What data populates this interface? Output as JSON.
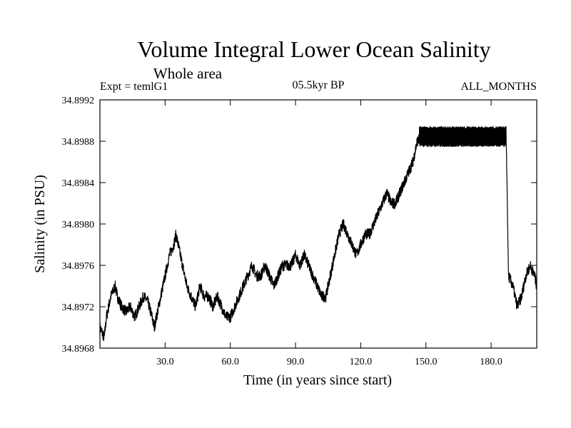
{
  "chart_data": {
    "type": "line",
    "title": "Volume Integral Lower Ocean Salinity",
    "subtitle": "Whole area",
    "experiment_label": "Expt = temlG1",
    "period_label": "05.5kyr BP",
    "season_label": "ALL_MONTHS",
    "xlabel": "Time (in years since start)",
    "ylabel": "Salinity (in PSU)",
    "xlim": [
      0,
      201
    ],
    "ylim": [
      34.8968,
      34.8992
    ],
    "x_ticks": [
      30,
      60,
      90,
      120,
      150,
      180
    ],
    "x_tick_labels": [
      "30.0",
      "60.0",
      "90.0",
      "120.0",
      "150.0",
      "180.0"
    ],
    "y_ticks": [
      34.8968,
      34.8972,
      34.8976,
      34.898,
      34.8984,
      34.8988,
      34.8992
    ],
    "y_tick_labels": [
      "34.8968",
      "34.8972",
      "34.8976",
      "34.8980",
      "34.8984",
      "34.8988",
      "34.8992"
    ],
    "grid": false,
    "series": [
      {
        "name": "Salinity",
        "color": "#000000",
        "points": [
          [
            0,
            34.897
          ],
          [
            1,
            34.89695
          ],
          [
            2,
            34.8969
          ],
          [
            3,
            34.8971
          ],
          [
            4,
            34.8972
          ],
          [
            5,
            34.8973
          ],
          [
            6,
            34.89735
          ],
          [
            7,
            34.8974
          ],
          [
            8,
            34.8973
          ],
          [
            10,
            34.8972
          ],
          [
            12,
            34.89715
          ],
          [
            14,
            34.8972
          ],
          [
            16,
            34.8971
          ],
          [
            18,
            34.8972
          ],
          [
            20,
            34.8973
          ],
          [
            22,
            34.89725
          ],
          [
            24,
            34.8971
          ],
          [
            25,
            34.897
          ],
          [
            26,
            34.8971
          ],
          [
            28,
            34.8973
          ],
          [
            30,
            34.8975
          ],
          [
            32,
            34.8977
          ],
          [
            34,
            34.8978
          ],
          [
            35,
            34.8979
          ],
          [
            36,
            34.8978
          ],
          [
            38,
            34.8976
          ],
          [
            40,
            34.8974
          ],
          [
            42,
            34.8973
          ],
          [
            44,
            34.8972
          ],
          [
            46,
            34.8974
          ],
          [
            48,
            34.8973
          ],
          [
            50,
            34.8973
          ],
          [
            52,
            34.8972
          ],
          [
            54,
            34.8973
          ],
          [
            56,
            34.8972
          ],
          [
            58,
            34.8971
          ],
          [
            60,
            34.8971
          ],
          [
            62,
            34.8972
          ],
          [
            64,
            34.8973
          ],
          [
            66,
            34.8974
          ],
          [
            68,
            34.8975
          ],
          [
            70,
            34.8976
          ],
          [
            72,
            34.8975
          ],
          [
            74,
            34.8975
          ],
          [
            76,
            34.8976
          ],
          [
            78,
            34.8975
          ],
          [
            80,
            34.8974
          ],
          [
            82,
            34.8975
          ],
          [
            84,
            34.8976
          ],
          [
            86,
            34.8976
          ],
          [
            88,
            34.8976
          ],
          [
            90,
            34.8977
          ],
          [
            92,
            34.8976
          ],
          [
            94,
            34.8977
          ],
          [
            96,
            34.8976
          ],
          [
            98,
            34.8975
          ],
          [
            100,
            34.8974
          ],
          [
            102,
            34.8973
          ],
          [
            104,
            34.8973
          ],
          [
            106,
            34.8975
          ],
          [
            108,
            34.8977
          ],
          [
            110,
            34.8979
          ],
          [
            112,
            34.898
          ],
          [
            114,
            34.8979
          ],
          [
            116,
            34.8978
          ],
          [
            118,
            34.8977
          ],
          [
            120,
            34.8978
          ],
          [
            122,
            34.8979
          ],
          [
            124,
            34.8979
          ],
          [
            126,
            34.898
          ],
          [
            128,
            34.8981
          ],
          [
            130,
            34.8982
          ],
          [
            132,
            34.8983
          ],
          [
            134,
            34.8982
          ],
          [
            136,
            34.8982
          ],
          [
            138,
            34.8983
          ],
          [
            140,
            34.8984
          ],
          [
            142,
            34.8985
          ],
          [
            144,
            34.8986
          ],
          [
            146,
            34.8988
          ],
          [
            148,
            34.89884
          ],
          [
            150,
            34.89885
          ],
          [
            155,
            34.89885
          ],
          [
            160,
            34.89885
          ],
          [
            165,
            34.89885
          ],
          [
            170,
            34.89885
          ],
          [
            175,
            34.89885
          ],
          [
            180,
            34.89885
          ],
          [
            185,
            34.89885
          ],
          [
            187,
            34.8988
          ],
          [
            188,
            34.8975
          ],
          [
            190,
            34.8974
          ],
          [
            192,
            34.8972
          ],
          [
            194,
            34.8973
          ],
          [
            196,
            34.8975
          ],
          [
            198,
            34.8976
          ],
          [
            200,
            34.8975
          ],
          [
            201,
            34.8974
          ]
        ],
        "oscillation_band": {
          "x_start": 147,
          "x_end": 187,
          "y_low": 34.89876,
          "y_high": 34.89893
        }
      }
    ]
  }
}
